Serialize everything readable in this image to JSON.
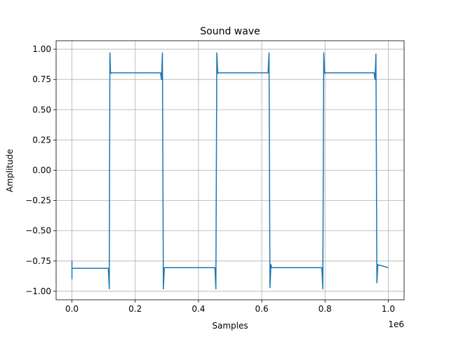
{
  "chart_data": {
    "type": "line",
    "title": "Sound wave",
    "xlabel": "Samples",
    "ylabel": "Amplitude",
    "x_offset_label": "1e6",
    "xlim": [
      -0.05,
      1.05
    ],
    "ylim": [
      -1.07,
      1.07
    ],
    "x_ticks": [
      0.0,
      0.2,
      0.4,
      0.6,
      0.8,
      1.0
    ],
    "x_tick_labels": [
      "0.0",
      "0.2",
      "0.4",
      "0.6",
      "0.8",
      "1.0"
    ],
    "y_ticks": [
      -1.0,
      -0.75,
      -0.5,
      -0.25,
      0.0,
      0.25,
      0.5,
      0.75,
      1.0
    ],
    "y_tick_labels": [
      "−1.00",
      "−0.75",
      "−0.50",
      "−0.25",
      "0.00",
      "0.25",
      "0.50",
      "0.75",
      "1.00"
    ],
    "grid": true,
    "color": "#1f77b4",
    "series": [
      {
        "x": [
          0.0,
          0.0,
          0.0,
          0.005,
          0.115,
          0.118,
          0.12,
          0.122,
          0.125,
          0.28,
          0.283,
          0.286,
          0.289,
          0.292,
          0.452,
          0.455,
          0.458,
          0.461,
          0.464,
          0.62,
          0.623,
          0.626,
          0.629,
          0.632,
          0.79,
          0.793,
          0.796,
          0.799,
          0.802,
          0.955,
          0.958,
          0.961,
          0.964,
          0.967,
          1.0
        ],
        "y": [
          -0.9,
          -0.75,
          -0.81,
          -0.81,
          -0.81,
          -0.98,
          0.97,
          0.8,
          0.805,
          0.805,
          0.75,
          0.97,
          -0.98,
          -0.805,
          -0.805,
          -0.98,
          0.97,
          0.8,
          0.805,
          0.805,
          0.97,
          -0.97,
          -0.78,
          -0.805,
          -0.805,
          -0.98,
          0.97,
          0.8,
          0.805,
          0.805,
          0.75,
          0.96,
          -0.93,
          -0.78,
          -0.805
        ]
      }
    ]
  }
}
